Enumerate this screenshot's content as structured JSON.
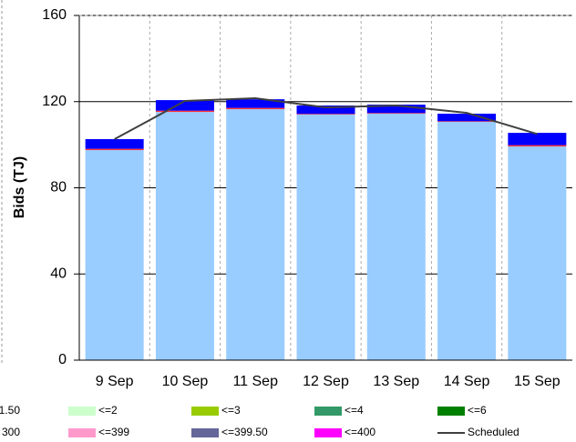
{
  "chart_data": {
    "type": "bar",
    "stacked": true,
    "y_label": "Bids (TJ)",
    "categories": [
      "9 Sep",
      "10 Sep",
      "11 Sep",
      "12 Sep",
      "13 Sep",
      "14 Sep",
      "15 Sep"
    ],
    "series": [
      {
        "color": "#99ccff",
        "values": [
          97.5,
          115.2,
          116.5,
          114,
          114.4,
          110.6,
          99.2
        ]
      },
      {
        "color": "#ff3333",
        "values": [
          0.6,
          0.6,
          0.6,
          0.3,
          0.3,
          0.3,
          0.6
        ]
      },
      {
        "color": "#0000ff",
        "values": [
          4.5,
          4.9,
          4,
          3.9,
          3.9,
          3.5,
          5.7
        ]
      },
      {
        "name": "Scheduled",
        "type": "line",
        "color": "#404040",
        "values": [
          102.6,
          120.3,
          121.6,
          117.3,
          118.2,
          114.8,
          105
        ]
      }
    ],
    "legend": [
      {
        "name": "1.50",
        "color": "#99ccff"
      },
      {
        "name": "<=2",
        "color": "#ccffcc"
      },
      {
        "name": "<=3",
        "color": "#99cc00"
      },
      {
        "name": "<=4",
        "color": "#339966"
      },
      {
        "name": "<=6",
        "color": "#008000"
      },
      {
        "name": "300",
        "color": "#ff3333"
      },
      {
        "name": "<=399",
        "color": "#ff99cc"
      },
      {
        "name": "<=399.50",
        "color": "#666699"
      },
      {
        "name": "<=400",
        "color": "#ff00ff"
      },
      {
        "name": "Scheduled",
        "color": "#404040",
        "line": true
      }
    ],
    "ylim": [
      0,
      160
    ],
    "yticks": [
      0,
      40,
      80,
      120,
      160
    ],
    "grid": true
  }
}
